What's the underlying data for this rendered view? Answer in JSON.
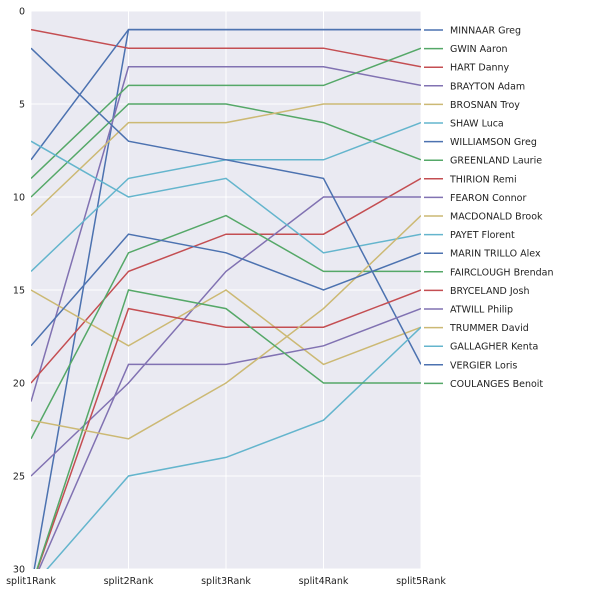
{
  "chart_data": {
    "type": "line",
    "title": "",
    "xlabel": "",
    "ylabel": "",
    "x": [
      "split1Rank",
      "split2Rank",
      "split3Rank",
      "split4Rank",
      "split5Rank"
    ],
    "yticks": [
      0,
      5,
      10,
      15,
      20,
      25,
      30
    ],
    "ylim": [
      30,
      0
    ],
    "y_inverted": true,
    "grid": true,
    "background": "#EAEAF2",
    "legend_position": "outside-right",
    "series": [
      {
        "name": "MINNAAR Greg",
        "color": "#4C72B0",
        "values": [
          31,
          1,
          1,
          1,
          1
        ]
      },
      {
        "name": "GWIN Aaron",
        "color": "#55A868",
        "values": [
          10,
          5,
          5,
          6,
          8
        ]
      },
      {
        "name": "HART Danny",
        "color": "#C44E52",
        "values": [
          1,
          2,
          2,
          2,
          3
        ]
      },
      {
        "name": "BRAYTON Adam",
        "color": "#8172B2",
        "values": [
          21,
          3,
          3,
          3,
          4
        ]
      },
      {
        "name": "BROSNAN Troy",
        "color": "#CCB974",
        "values": [
          11,
          6,
          6,
          5,
          5
        ]
      },
      {
        "name": "SHAW Luca",
        "color": "#64B5CD",
        "values": [
          14,
          9,
          8,
          8,
          6
        ]
      },
      {
        "name": "WILLIAMSON Greg",
        "color": "#4C72B0",
        "values": [
          8,
          1,
          1,
          1,
          1
        ]
      },
      {
        "name": "GREENLAND Laurie",
        "color": "#55A868",
        "values": [
          9,
          4,
          4,
          4,
          2
        ]
      },
      {
        "name": "THIRION Remi",
        "color": "#C44E52",
        "values": [
          20,
          14,
          12,
          12,
          9
        ]
      },
      {
        "name": "FEARON Connor",
        "color": "#8172B2",
        "values": [
          25,
          20,
          14,
          10,
          10
        ]
      },
      {
        "name": "MACDONALD Brook",
        "color": "#CCB974",
        "values": [
          15,
          18,
          15,
          19,
          17
        ]
      },
      {
        "name": "PAYET Florent",
        "color": "#64B5CD",
        "values": [
          7,
          10,
          9,
          13,
          12
        ]
      },
      {
        "name": "MARIN TRILLO Alex",
        "color": "#4C72B0",
        "values": [
          2,
          7,
          8,
          9,
          19
        ]
      },
      {
        "name": "FAIRCLOUGH Brendan",
        "color": "#55A868",
        "values": [
          23,
          13,
          11,
          14,
          14
        ]
      },
      {
        "name": "BRYCELAND Josh",
        "color": "#C44E52",
        "values": [
          31,
          16,
          17,
          17,
          15
        ]
      },
      {
        "name": "ATWILL Philip",
        "color": "#8172B2",
        "values": [
          31,
          19,
          19,
          18,
          16
        ]
      },
      {
        "name": "TRUMMER David",
        "color": "#CCB974",
        "values": [
          22,
          23,
          20,
          16,
          11
        ]
      },
      {
        "name": "GALLAGHER Kenta",
        "color": "#64B5CD",
        "values": [
          31,
          25,
          24,
          22,
          17
        ]
      },
      {
        "name": "VERGIER Loris",
        "color": "#4C72B0",
        "values": [
          18,
          12,
          13,
          15,
          13
        ]
      },
      {
        "name": "COULANGES Benoit",
        "color": "#55A868",
        "values": [
          31,
          15,
          16,
          20,
          20
        ]
      }
    ]
  }
}
